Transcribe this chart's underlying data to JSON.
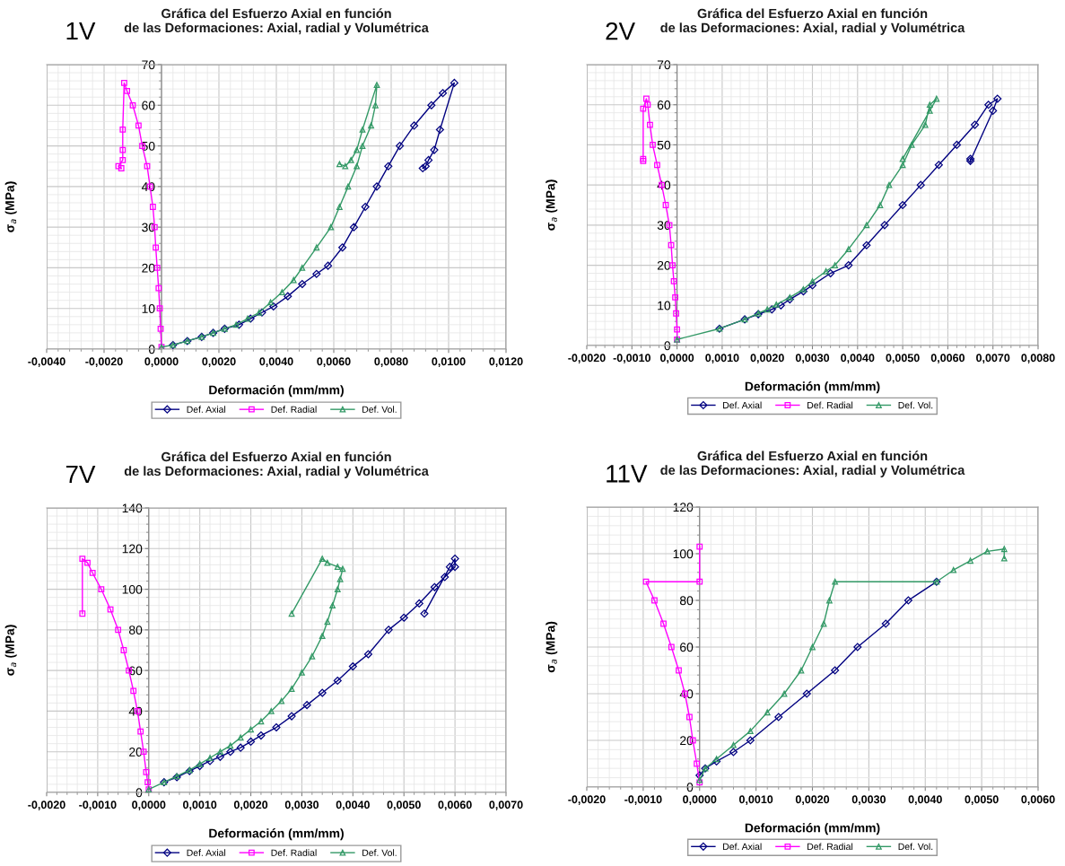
{
  "chart_data": [
    {
      "type": "line",
      "title": "Gráfica del Esfuerzo Axial en función\nde las Deformaciones: Axial, radial y Volumétrica",
      "xlabel": "Deformación (mm/mm)",
      "ylabel": "σ$_{a}$ (MPa)",
      "annotations": [
        "1V"
      ],
      "grid": true,
      "legend": "bottom",
      "xlim": [
        -0.004,
        0.012
      ],
      "ylim": [
        0,
        70
      ],
      "xticks": [
        {
          "value": -0.004,
          "label": "-0,0040"
        },
        {
          "value": -0.002,
          "label": "-0,0020"
        },
        {
          "value": 0,
          "label": "0,0000"
        },
        {
          "value": 0.002,
          "label": "0,0020"
        },
        {
          "value": 0.004,
          "label": "0,0040"
        },
        {
          "value": 0.006,
          "label": "0,0060"
        },
        {
          "value": 0.008,
          "label": "0,0080"
        },
        {
          "value": 0.01,
          "label": "0,0100"
        },
        {
          "value": 0.012,
          "label": "0,0120"
        }
      ],
      "yticks": [
        0,
        10,
        20,
        30,
        40,
        50,
        60,
        70
      ],
      "series": [
        {
          "name": "Def. Axial",
          "color": "#000080",
          "marker": "diamond",
          "x": [
            0.0004,
            0.0009,
            0.0014,
            0.0018,
            0.0022,
            0.0027,
            0.0031,
            0.0035,
            0.0039,
            0.0044,
            0.0049,
            0.0054,
            0.0058,
            0.0063,
            0.0067,
            0.0071,
            0.0075,
            0.0079,
            0.0083,
            0.0088,
            0.0094,
            0.0098,
            0.0102,
            0.0097,
            0.0095,
            0.0093,
            0.0092,
            0.0091
          ],
          "values": [
            1,
            2,
            3,
            4,
            5,
            6,
            7.5,
            9,
            10.5,
            13,
            16,
            18.5,
            20.5,
            25,
            30,
            35,
            40,
            45,
            50,
            55,
            60,
            63,
            65.5,
            54,
            49,
            46.5,
            45,
            44.5
          ]
        },
        {
          "name": "Def. Radial",
          "color": "#ff00ff",
          "marker": "square",
          "x": [
            0,
            -3e-05,
            -6e-05,
            -0.0001,
            -0.00015,
            -0.0002,
            -0.00024,
            -0.0003,
            -0.0004,
            -0.0005,
            -0.00067,
            -0.0008,
            -0.001,
            -0.0012,
            -0.0013,
            -0.00135,
            -0.00135,
            -0.00135,
            -0.0015,
            -0.0014
          ],
          "values": [
            0.5,
            5,
            10,
            15,
            20,
            25,
            30,
            35,
            40,
            45,
            50,
            55,
            60,
            63.5,
            65.5,
            54,
            49,
            46.5,
            45,
            44.5
          ]
        },
        {
          "name": "Def. Vol.",
          "color": "#339966",
          "marker": "triangle",
          "x": [
            0,
            0.0004,
            0.0009,
            0.0014,
            0.0018,
            0.0022,
            0.0026,
            0.003,
            0.0034,
            0.0038,
            0.0042,
            0.0046,
            0.0049,
            0.0054,
            0.0059,
            0.0062,
            0.0065,
            0.0068,
            0.007,
            0.0073,
            0.00745,
            0.0075,
            0.007,
            0.0068,
            0.0066,
            0.0064,
            0.0062
          ],
          "values": [
            0.5,
            1,
            2,
            3,
            4,
            5,
            6,
            7.5,
            9,
            11.5,
            14,
            17,
            20,
            25,
            30,
            35,
            40,
            45,
            50,
            55,
            60,
            65,
            54,
            49,
            46.5,
            45,
            45.5
          ]
        }
      ]
    },
    {
      "type": "line",
      "title": "Gráfica del Esfuerzo Axial en función\nde las Deformaciones: Axial, radial y Volumétrica",
      "xlabel": "Deformación (mm/mm)",
      "ylabel": "σ$_{a}$ (MPa)",
      "annotations": [
        "2V"
      ],
      "grid": true,
      "legend": "bottom",
      "xlim": [
        -0.002,
        0.008
      ],
      "ylim": [
        0,
        70
      ],
      "xticks": [
        {
          "value": -0.002,
          "label": "-0,0020"
        },
        {
          "value": -0.001,
          "label": "-0,0010"
        },
        {
          "value": 0,
          "label": "0,0000"
        },
        {
          "value": 0.001,
          "label": "0,0010"
        },
        {
          "value": 0.002,
          "label": "0,0020"
        },
        {
          "value": 0.003,
          "label": "0,0030"
        },
        {
          "value": 0.004,
          "label": "0,0040"
        },
        {
          "value": 0.005,
          "label": "0,0050"
        },
        {
          "value": 0.006,
          "label": "0,0060"
        },
        {
          "value": 0.007,
          "label": "0,0070"
        },
        {
          "value": 0.008,
          "label": "0,0080"
        }
      ],
      "yticks": [
        0,
        10,
        20,
        30,
        40,
        50,
        60,
        70
      ],
      "series": [
        {
          "name": "Def. Axial",
          "color": "#000080",
          "marker": "diamond",
          "x": [
            0.00094,
            0.0015,
            0.0018,
            0.0021,
            0.0023,
            0.0025,
            0.0028,
            0.003,
            0.0034,
            0.0038,
            0.0042,
            0.0046,
            0.005,
            0.0054,
            0.0058,
            0.0062,
            0.0066,
            0.0069,
            0.0071,
            0.007,
            0.0065,
            0.0065
          ],
          "values": [
            4.2,
            6.5,
            7.8,
            9,
            10,
            11.5,
            13.5,
            15,
            18,
            20,
            25,
            30,
            35,
            40,
            45,
            50,
            55,
            60,
            61.5,
            58.5,
            46,
            46.5
          ]
        },
        {
          "name": "Def. Radial",
          "color": "#ff00ff",
          "marker": "square",
          "x": [
            0,
            0,
            -2e-05,
            -4e-05,
            -7e-05,
            -0.0001,
            -0.00013,
            -0.00017,
            -0.00025,
            -0.00034,
            -0.00044,
            -0.00054,
            -0.0006,
            -0.00065,
            -0.00068,
            -0.00075,
            -0.00075,
            -0.00075
          ],
          "values": [
            1.5,
            4,
            8,
            12,
            16,
            20,
            25,
            30,
            35,
            40,
            45,
            50,
            55,
            60,
            61.5,
            59,
            46.5,
            46
          ]
        },
        {
          "name": "Def. Vol.",
          "color": "#339966",
          "marker": "triangle",
          "x": [
            0,
            0.00094,
            0.0015,
            0.0018,
            0.002,
            0.0022,
            0.0025,
            0.0028,
            0.003,
            0.0033,
            0.0035,
            0.0038,
            0.0042,
            0.0045,
            0.0047,
            0.005,
            0.0052,
            0.0055,
            0.0056,
            0.00575,
            0.0056,
            0.005
          ],
          "values": [
            1.5,
            4.2,
            6.5,
            8,
            9,
            10.2,
            12,
            14,
            16,
            18.5,
            20,
            24,
            30,
            35,
            40,
            45,
            50,
            55,
            60,
            61.5,
            58.5,
            46.5
          ]
        }
      ]
    },
    {
      "type": "line",
      "title": "Gráfica del Esfuerzo Axial en función\nde las Deformaciones: Axial, radial y Volumétrica",
      "xlabel": "Deformación (mm/mm)",
      "ylabel": "σ$_{a}$ (MPa)",
      "annotations": [
        "7V"
      ],
      "grid": true,
      "legend": "bottom",
      "xlim": [
        -0.002,
        0.007
      ],
      "ylim": [
        0,
        140
      ],
      "xticks": [
        {
          "value": -0.002,
          "label": "-0,0020"
        },
        {
          "value": -0.001,
          "label": "-0,0010"
        },
        {
          "value": 0,
          "label": "0,0000"
        },
        {
          "value": 0.001,
          "label": "0,0010"
        },
        {
          "value": 0.002,
          "label": "0,0020"
        },
        {
          "value": 0.003,
          "label": "0,0030"
        },
        {
          "value": 0.004,
          "label": "0,0040"
        },
        {
          "value": 0.005,
          "label": "0,0050"
        },
        {
          "value": 0.006,
          "label": "0,0060"
        },
        {
          "value": 0.007,
          "label": "0,0070"
        }
      ],
      "yticks": [
        0,
        20,
        40,
        60,
        80,
        100,
        120,
        140
      ],
      "series": [
        {
          "name": "Def. Axial",
          "color": "#000080",
          "marker": "diamond",
          "x": [
            0.0003,
            0.00055,
            0.0008,
            0.001,
            0.0012,
            0.0014,
            0.0016,
            0.0018,
            0.002,
            0.0022,
            0.0025,
            0.0028,
            0.0031,
            0.0034,
            0.0037,
            0.004,
            0.0043,
            0.0047,
            0.005,
            0.0053,
            0.0056,
            0.0058,
            0.006,
            0.006,
            0.0059,
            0.0054
          ],
          "values": [
            5,
            7.5,
            10.5,
            13,
            15.5,
            17.5,
            20,
            22,
            25,
            28,
            32,
            37.5,
            43,
            49,
            55,
            62,
            68,
            80,
            86,
            93,
            101,
            106,
            111,
            115,
            111,
            88
          ]
        },
        {
          "name": "Def. Radial",
          "color": "#ff00ff",
          "marker": "square",
          "x": [
            0,
            -2e-05,
            -5e-05,
            -0.0001,
            -0.00016,
            -0.00022,
            -0.0003,
            -0.00039,
            -0.00049,
            -0.0006,
            -0.00075,
            -0.00093,
            -0.0011,
            -0.0012,
            -0.0013,
            -0.0013
          ],
          "values": [
            1.5,
            5,
            10,
            20,
            30,
            40,
            50,
            60,
            70,
            80,
            90,
            100,
            108,
            113,
            115,
            88
          ]
        },
        {
          "name": "Def. Vol.",
          "color": "#339966",
          "marker": "triangle",
          "x": [
            0,
            0.0003,
            0.00055,
            0.0008,
            0.001,
            0.0012,
            0.0014,
            0.0016,
            0.0018,
            0.002,
            0.0022,
            0.0024,
            0.0026,
            0.0028,
            0.003,
            0.0032,
            0.0034,
            0.0035,
            0.0036,
            0.0037,
            0.00375,
            0.0038,
            0.0037,
            0.0035,
            0.0034,
            0.0028
          ],
          "values": [
            1.5,
            5,
            8,
            11,
            14,
            17,
            20,
            23,
            27,
            31,
            35,
            40,
            45,
            51,
            59,
            67,
            77,
            84,
            92,
            100,
            105,
            110,
            111,
            113,
            115,
            88
          ]
        }
      ]
    },
    {
      "type": "line",
      "title": "Gráfica del Esfuerzo Axial en función\nde las Deformaciones: Axial, radial y Volumétrica",
      "xlabel": "Deformación (mm/mm)",
      "ylabel": "σ$_{a}$ (MPa)",
      "annotations": [
        "11V"
      ],
      "grid": true,
      "legend": "bottom",
      "xlim": [
        -0.002,
        0.006
      ],
      "ylim": [
        0,
        120
      ],
      "xticks": [
        {
          "value": -0.002,
          "label": "-0,0020"
        },
        {
          "value": -0.001,
          "label": "-0,0010"
        },
        {
          "value": 0,
          "label": "0,0000"
        },
        {
          "value": 0.001,
          "label": "0,0010"
        },
        {
          "value": 0.002,
          "label": "0,0020"
        },
        {
          "value": 0.003,
          "label": "0,0030"
        },
        {
          "value": 0.004,
          "label": "0,0040"
        },
        {
          "value": 0.005,
          "label": "0,0050"
        },
        {
          "value": 0.006,
          "label": "0,0060"
        }
      ],
      "yticks": [
        0,
        20,
        40,
        60,
        80,
        100,
        120
      ],
      "series": [
        {
          "name": "Def. Axial",
          "color": "#000080",
          "marker": "diamond",
          "x": [
            0,
            0.0001,
            0.0003,
            0.0006,
            0.0009,
            0.0014,
            0.0019,
            0.0024,
            0.0028,
            0.0033,
            0.0037,
            0.0042
          ],
          "values": [
            5,
            8,
            11,
            15,
            20,
            30,
            40,
            50,
            60,
            70,
            80,
            88
          ]
        },
        {
          "name": "Def. Radial",
          "color": "#ff00ff",
          "marker": "square",
          "x": [
            0,
            -5e-05,
            -0.00012,
            -0.00018,
            -0.00026,
            -0.00037,
            -0.0005,
            -0.00064,
            -0.0008,
            -0.00095,
            0,
            0
          ],
          "values": [
            2,
            10,
            20,
            30,
            40,
            50,
            60,
            70,
            80,
            88,
            88,
            103
          ]
        },
        {
          "name": "Def. Vol.",
          "color": "#339966",
          "marker": "triangle",
          "x": [
            0,
            0.0001,
            0.0003,
            0.0006,
            0.0009,
            0.0012,
            0.0015,
            0.0018,
            0.002,
            0.0022,
            0.0023,
            0.0024,
            0.0042,
            0.0045,
            0.0048,
            0.0051,
            0.0054,
            0.0054
          ],
          "values": [
            3,
            8,
            12,
            18,
            24,
            32,
            40,
            50,
            60,
            70,
            80,
            88,
            88,
            93,
            97,
            101,
            102,
            98
          ]
        }
      ]
    }
  ]
}
